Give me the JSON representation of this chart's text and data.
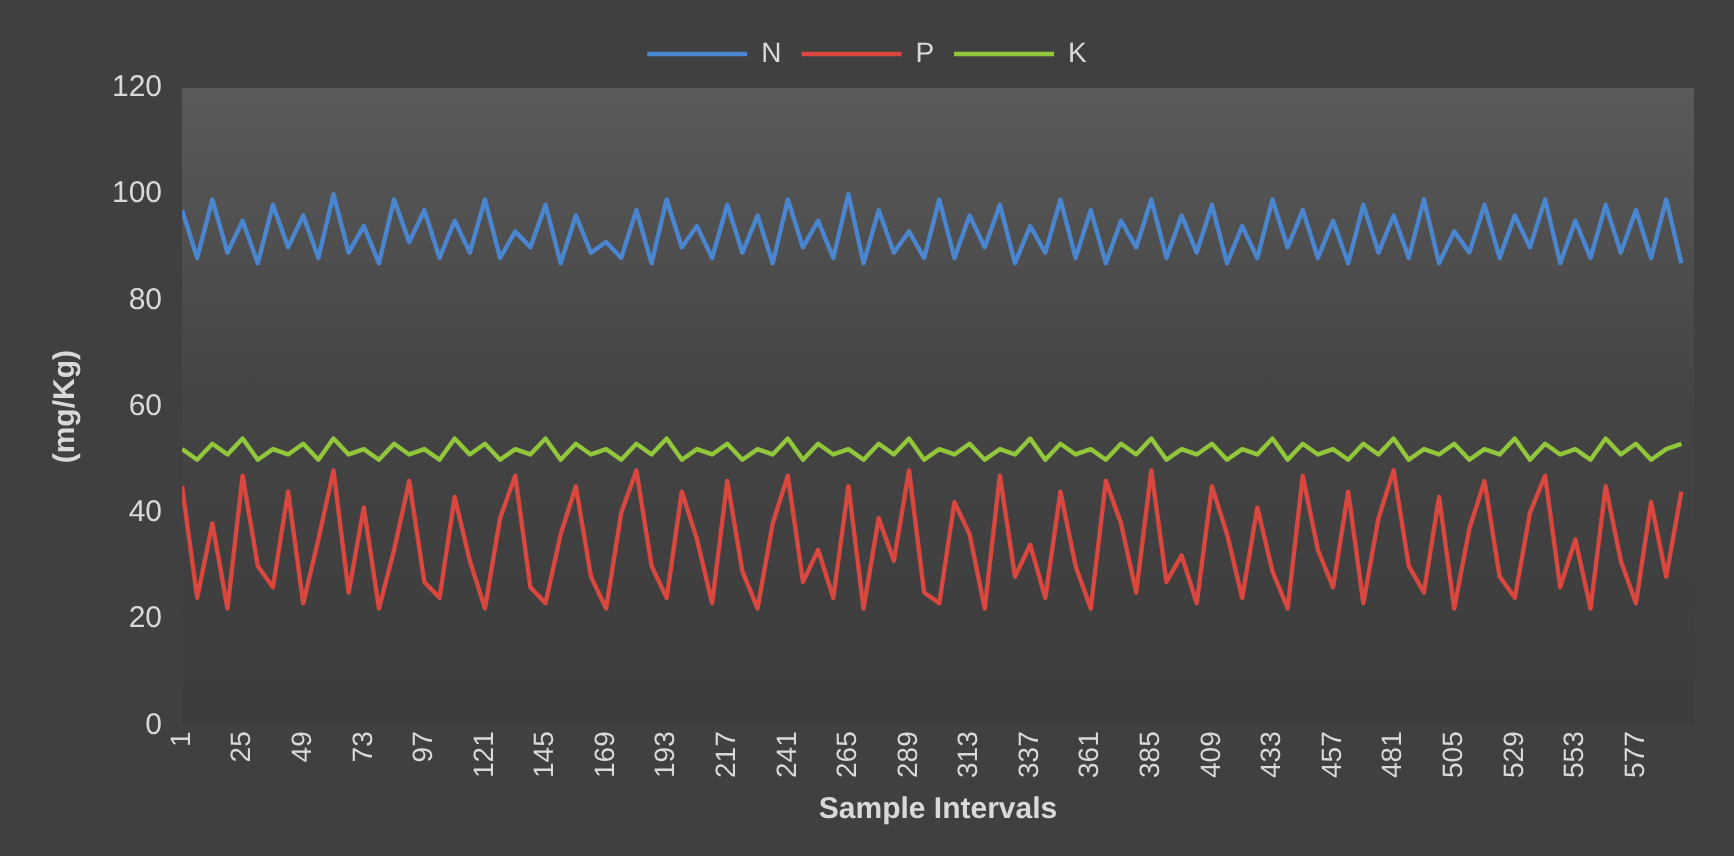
{
  "chart_data": {
    "type": "line",
    "xlabel": "Sample Intervals",
    "ylabel": "(mg/Kg)",
    "legend": "top",
    "grid": false,
    "marker": "none",
    "x": [
      1,
      7,
      13,
      19,
      25,
      31,
      37,
      43,
      49,
      55,
      61,
      67,
      73,
      79,
      85,
      91,
      97,
      103,
      109,
      115,
      121,
      127,
      133,
      139,
      145,
      151,
      157,
      163,
      169,
      175,
      181,
      187,
      193,
      199,
      205,
      211,
      217,
      223,
      229,
      235,
      241,
      247,
      253,
      259,
      265,
      271,
      277,
      283,
      289,
      295,
      301,
      307,
      313,
      319,
      325,
      331,
      337,
      343,
      349,
      355,
      361,
      367,
      373,
      379,
      385,
      391,
      397,
      403,
      409,
      415,
      421,
      427,
      433,
      439,
      445,
      451,
      457,
      463,
      469,
      475,
      481,
      487,
      493,
      499,
      505,
      511,
      517,
      523,
      529,
      535,
      541,
      547,
      553,
      559,
      565,
      571,
      577,
      583,
      589,
      595
    ],
    "xlim": [
      1,
      600
    ],
    "xticks": [
      1,
      25,
      49,
      73,
      97,
      121,
      145,
      169,
      193,
      217,
      241,
      265,
      289,
      313,
      337,
      361,
      385,
      409,
      433,
      457,
      481,
      505,
      529,
      553,
      577
    ],
    "ylim": [
      0,
      120
    ],
    "yticks": [
      0,
      20,
      40,
      60,
      80,
      100,
      120
    ],
    "series": [
      {
        "name": "N",
        "color": "#4a86d0",
        "values": [
          97,
          88,
          99,
          89,
          95,
          87,
          98,
          90,
          96,
          88,
          100,
          89,
          94,
          87,
          99,
          91,
          97,
          88,
          95,
          89,
          99,
          88,
          93,
          90,
          98,
          87,
          96,
          89,
          91,
          88,
          97,
          87,
          99,
          90,
          94,
          88,
          98,
          89,
          96,
          87,
          99,
          90,
          95,
          88,
          100,
          87,
          97,
          89,
          93,
          88,
          99,
          88,
          96,
          90,
          98,
          87,
          94,
          89,
          99,
          88,
          97,
          87,
          95,
          90,
          99,
          88,
          96,
          89,
          98,
          87,
          94,
          88,
          99,
          90,
          97,
          88,
          95,
          87,
          98,
          89,
          96,
          88,
          99,
          87,
          93,
          89,
          98,
          88,
          96,
          90,
          99,
          87,
          95,
          88,
          98,
          89,
          97,
          88,
          99,
          87
        ]
      },
      {
        "name": "P",
        "color": "#d9473f",
        "values": [
          45,
          24,
          38,
          22,
          47,
          30,
          26,
          44,
          23,
          35,
          48,
          25,
          41,
          22,
          33,
          46,
          27,
          24,
          43,
          31,
          22,
          39,
          47,
          26,
          23,
          36,
          45,
          28,
          22,
          40,
          48,
          30,
          24,
          44,
          35,
          23,
          46,
          29,
          22,
          38,
          47,
          27,
          33,
          24,
          45,
          22,
          39,
          31,
          48,
          25,
          23,
          42,
          36,
          22,
          47,
          28,
          34,
          24,
          44,
          30,
          22,
          46,
          38,
          25,
          48,
          27,
          32,
          23,
          45,
          36,
          24,
          41,
          29,
          22,
          47,
          33,
          26,
          44,
          23,
          39,
          48,
          30,
          25,
          43,
          22,
          37,
          46,
          28,
          24,
          40,
          47,
          26,
          35,
          22,
          45,
          31,
          23,
          42,
          28,
          44
        ]
      },
      {
        "name": "K",
        "color": "#92c73c",
        "values": [
          52,
          50,
          53,
          51,
          54,
          50,
          52,
          51,
          53,
          50,
          54,
          51,
          52,
          50,
          53,
          51,
          52,
          50,
          54,
          51,
          53,
          50,
          52,
          51,
          54,
          50,
          53,
          51,
          52,
          50,
          53,
          51,
          54,
          50,
          52,
          51,
          53,
          50,
          52,
          51,
          54,
          50,
          53,
          51,
          52,
          50,
          53,
          51,
          54,
          50,
          52,
          51,
          53,
          50,
          52,
          51,
          54,
          50,
          53,
          51,
          52,
          50,
          53,
          51,
          54,
          50,
          52,
          51,
          53,
          50,
          52,
          51,
          54,
          50,
          53,
          51,
          52,
          50,
          53,
          51,
          54,
          50,
          52,
          51,
          53,
          50,
          52,
          51,
          54,
          50,
          53,
          51,
          52,
          50,
          54,
          51,
          53,
          50,
          52,
          53
        ]
      }
    ]
  }
}
